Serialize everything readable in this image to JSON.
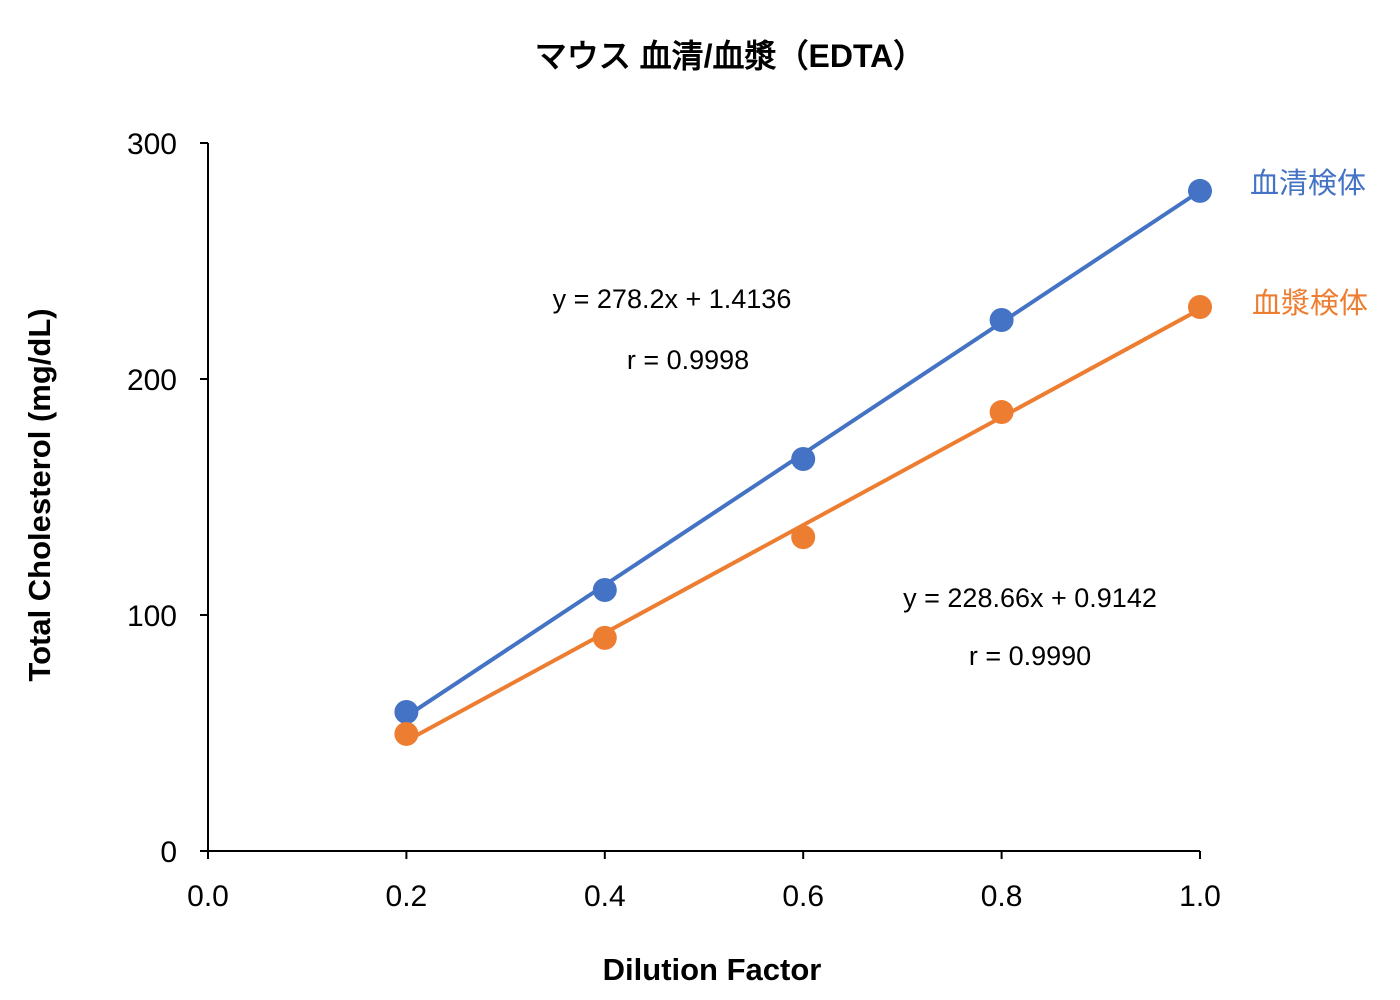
{
  "chart_data": {
    "type": "scatter",
    "title": "マウス 血清/血漿（EDTA）",
    "xlabel": "Dilution Factor",
    "ylabel": "Total Cholesterol (mg/dL)",
    "xlim": [
      0,
      1.0
    ],
    "ylim": [
      0,
      300
    ],
    "xticks": [
      "0.0",
      "0.2",
      "0.4",
      "0.6",
      "0.8",
      "1.0"
    ],
    "yticks": [
      "0",
      "100",
      "200",
      "300"
    ],
    "grid": false,
    "legend": "inline-right",
    "series": [
      {
        "name": "血清検体",
        "color": "#4472C4",
        "x": [
          0.2,
          0.4,
          0.6,
          0.8,
          1.0
        ],
        "y": [
          58.9,
          110.6,
          166.1,
          225.0,
          279.7
        ],
        "trendline": {
          "slope": 278.2,
          "intercept": 1.4136
        },
        "equation": "y = 278.2x + 1.4136",
        "r": "r = 0.9998"
      },
      {
        "name": "血漿検体",
        "color": "#ED7D31",
        "x": [
          0.2,
          0.4,
          0.6,
          0.8,
          1.0
        ],
        "y": [
          49.6,
          90.3,
          133.0,
          186.0,
          230.5
        ],
        "trendline": {
          "slope": 228.66,
          "intercept": 0.9142
        },
        "equation": "y = 228.66x + 0.9142",
        "r": "r = 0.9990"
      }
    ]
  }
}
